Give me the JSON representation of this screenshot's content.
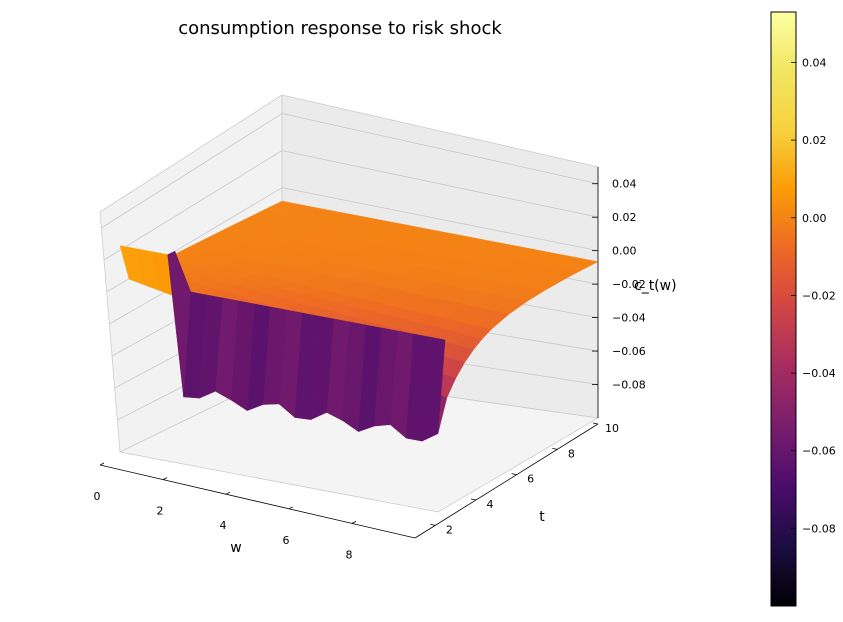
{
  "chart_data": {
    "type": "surface",
    "title": "consumption response to risk shock",
    "xlabel": "w",
    "ylabel": "t",
    "zlabel": "c_t(w)",
    "x_ticks": [
      "0",
      "2",
      "4",
      "6",
      "8"
    ],
    "y_ticks": [
      "2",
      "4",
      "6",
      "8",
      "10"
    ],
    "z_ticks": [
      "−0.08",
      "−0.06",
      "−0.04",
      "−0.02",
      "0.00",
      "0.02",
      "0.04"
    ],
    "z_tick_values": [
      -0.08,
      -0.06,
      -0.04,
      -0.02,
      0.0,
      0.02,
      0.04
    ],
    "xlim": [
      0,
      10
    ],
    "ylim": [
      1,
      10
    ],
    "zlim": [
      -0.1,
      0.05
    ],
    "grid": true,
    "colormap": "inferno",
    "colorbar": {
      "ticks": [
        "0.04",
        "0.02",
        "0.00",
        "−0.02",
        "−0.04",
        "−0.06",
        "−0.08"
      ],
      "tick_values": [
        0.04,
        0.02,
        0.0,
        -0.02,
        -0.04,
        -0.06,
        -0.08
      ],
      "range": [
        -0.1,
        0.053
      ]
    },
    "surface": {
      "description_values": {
        "t1_low_w_value": 0.02,
        "t1_high_w_value": -0.06,
        "steady_value": 0.0,
        "w_grid": [
          0,
          0.5,
          1,
          1.5,
          2,
          2.5,
          3,
          3.5,
          4,
          4.5,
          5,
          5.5,
          6,
          6.5,
          7,
          7.5,
          8,
          8.5,
          9,
          9.5,
          10
        ],
        "t_grid": [
          1,
          1.5,
          2,
          2.5,
          3,
          3.5,
          4,
          5,
          6,
          7,
          8,
          9,
          10
        ]
      }
    }
  }
}
